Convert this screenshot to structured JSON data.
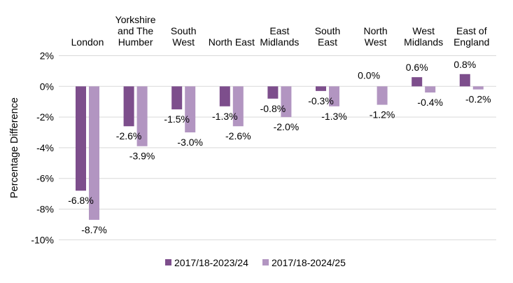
{
  "chart_data": {
    "type": "bar",
    "title": "",
    "ylabel": "Percentage Difference",
    "xlabel": "",
    "ylim": [
      -10,
      2
    ],
    "grid": true,
    "legend_position": "bottom",
    "yticks": [
      {
        "value": 2,
        "label": "2%"
      },
      {
        "value": 0,
        "label": "0%"
      },
      {
        "value": -2,
        "label": "-2%"
      },
      {
        "value": -4,
        "label": "-4%"
      },
      {
        "value": -6,
        "label": "-6%"
      },
      {
        "value": -8,
        "label": "-8%"
      },
      {
        "value": -10,
        "label": "-10%"
      }
    ],
    "categories": [
      "London",
      "Yorkshire and The Humber",
      "South West",
      "North East",
      "East Midlands",
      "South East",
      "North West",
      "West Midlands",
      "East of England"
    ],
    "category_label_lines": [
      [
        "London"
      ],
      [
        "Yorkshire",
        "and The",
        "Humber"
      ],
      [
        "South",
        "West"
      ],
      [
        "North East"
      ],
      [
        "East",
        "Midlands"
      ],
      [
        "South",
        "East"
      ],
      [
        "North",
        "West"
      ],
      [
        "West",
        "Midlands"
      ],
      [
        "East of",
        "England"
      ]
    ],
    "series": [
      {
        "name": "2017/18-2023/24",
        "color": "#7D4E8C",
        "values": [
          -6.8,
          -2.6,
          -1.5,
          -1.3,
          -0.8,
          -0.3,
          0.0,
          0.6,
          0.8
        ],
        "data_labels": [
          "-6.8%",
          "-2.6%",
          "-1.5%",
          "-1.3%",
          "-0.8%",
          "-0.3%",
          "0.0%",
          "0.6%",
          "0.8%"
        ]
      },
      {
        "name": "2017/18-2024/25",
        "color": "#B295C1",
        "values": [
          -8.7,
          -3.9,
          -3.0,
          -2.6,
          -2.0,
          -1.3,
          -1.2,
          -0.4,
          -0.2
        ],
        "data_labels": [
          "-8.7%",
          "-3.9%",
          "-3.0%",
          "-2.6%",
          "-2.0%",
          "-1.3%",
          "-1.2%",
          "-0.4%",
          "-0.2%"
        ]
      }
    ],
    "colors": {
      "gridline": "#D9D9D9",
      "text": "#000000",
      "background": "#FFFFFF"
    }
  }
}
